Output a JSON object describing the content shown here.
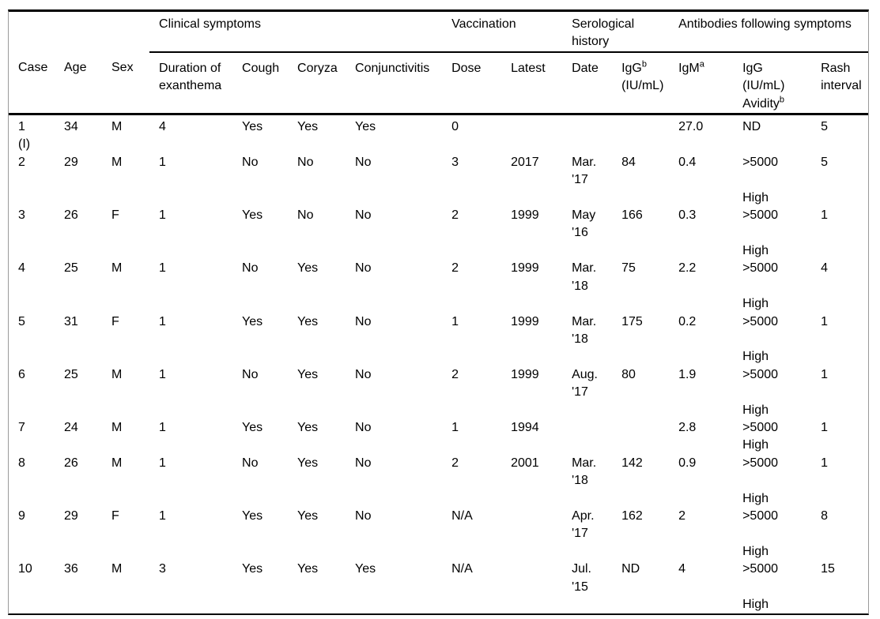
{
  "table": {
    "group_headers": [
      {
        "id": "case-age-sex-spacer",
        "lines": [],
        "colspan": 3,
        "underline": false
      },
      {
        "id": "clinical-symptoms",
        "lines": [
          "Clinical symptoms"
        ],
        "colspan": 4,
        "underline": true
      },
      {
        "id": "vaccination",
        "lines": [
          "Vaccination"
        ],
        "colspan": 2,
        "underline": true
      },
      {
        "id": "serological-history",
        "lines": [
          "Serological",
          "history"
        ],
        "colspan": 2,
        "underline": true
      },
      {
        "id": "antibodies-following-symptoms",
        "lines": [
          "Antibodies following symptoms"
        ],
        "colspan": 3,
        "underline": true
      }
    ],
    "columns": [
      {
        "id": "case",
        "lines": [
          "Case"
        ]
      },
      {
        "id": "age",
        "lines": [
          "Age"
        ]
      },
      {
        "id": "sex",
        "lines": [
          "Sex"
        ]
      },
      {
        "id": "duration-of-exanthema",
        "lines": [
          "Duration of",
          "exanthema"
        ]
      },
      {
        "id": "cough",
        "lines": [
          "Cough"
        ]
      },
      {
        "id": "coryza",
        "lines": [
          "Coryza"
        ]
      },
      {
        "id": "conjunctivitis",
        "lines": [
          "Conjunctivitis"
        ]
      },
      {
        "id": "dose",
        "lines": [
          "Dose"
        ]
      },
      {
        "id": "latest",
        "lines": [
          "Latest"
        ]
      },
      {
        "id": "date",
        "lines": [
          "Date"
        ]
      },
      {
        "id": "igg-serology",
        "lines": [
          {
            "text": "IgG",
            "sup": "b"
          },
          "(IU/mL)"
        ]
      },
      {
        "id": "igm",
        "lines": [
          {
            "text": "IgM",
            "sup": "a"
          }
        ]
      },
      {
        "id": "igg-avidity",
        "lines": [
          "IgG",
          "(IU/mL)",
          {
            "text": "Avidity",
            "sup": "b"
          }
        ]
      },
      {
        "id": "rash-interval",
        "lines": [
          "Rash",
          "interval"
        ]
      }
    ],
    "rows": [
      {
        "case": [
          "1",
          "(I)"
        ],
        "age": [
          "34"
        ],
        "sex": [
          "M"
        ],
        "duration-of-exanthema": [
          "4"
        ],
        "cough": [
          "Yes"
        ],
        "coryza": [
          "Yes"
        ],
        "conjunctivitis": [
          "Yes"
        ],
        "dose": [
          "0"
        ],
        "latest": [],
        "date": [],
        "igg-serology": [],
        "igm": [
          "27.0"
        ],
        "igg-avidity": [
          "ND"
        ],
        "rash-interval": [
          "5"
        ]
      },
      {
        "case": [
          "2"
        ],
        "age": [
          "29"
        ],
        "sex": [
          "M"
        ],
        "duration-of-exanthema": [
          "1"
        ],
        "cough": [
          "No"
        ],
        "coryza": [
          "No"
        ],
        "conjunctivitis": [
          "No"
        ],
        "dose": [
          "3"
        ],
        "latest": [
          "2017"
        ],
        "date": [
          "Mar.",
          "'17"
        ],
        "igg-serology": [
          "84"
        ],
        "igm": [
          "0.4"
        ],
        "igg-avidity": [
          ">5000",
          "",
          "High"
        ],
        "rash-interval": [
          "5"
        ]
      },
      {
        "case": [
          "3"
        ],
        "age": [
          "26"
        ],
        "sex": [
          "F"
        ],
        "duration-of-exanthema": [
          "1"
        ],
        "cough": [
          "Yes"
        ],
        "coryza": [
          "No"
        ],
        "conjunctivitis": [
          "No"
        ],
        "dose": [
          "2"
        ],
        "latest": [
          "1999"
        ],
        "date": [
          "May",
          "'16"
        ],
        "igg-serology": [
          "166"
        ],
        "igm": [
          "0.3"
        ],
        "igg-avidity": [
          ">5000",
          "",
          "High"
        ],
        "rash-interval": [
          "1"
        ]
      },
      {
        "case": [
          "4"
        ],
        "age": [
          "25"
        ],
        "sex": [
          "M"
        ],
        "duration-of-exanthema": [
          "1"
        ],
        "cough": [
          "No"
        ],
        "coryza": [
          "Yes"
        ],
        "conjunctivitis": [
          "No"
        ],
        "dose": [
          "2"
        ],
        "latest": [
          "1999"
        ],
        "date": [
          "Mar.",
          "'18"
        ],
        "igg-serology": [
          "75"
        ],
        "igm": [
          "2.2"
        ],
        "igg-avidity": [
          ">5000",
          "",
          "High"
        ],
        "rash-interval": [
          "4"
        ]
      },
      {
        "case": [
          "5"
        ],
        "age": [
          "31"
        ],
        "sex": [
          "F"
        ],
        "duration-of-exanthema": [
          "1"
        ],
        "cough": [
          "Yes"
        ],
        "coryza": [
          "Yes"
        ],
        "conjunctivitis": [
          "No"
        ],
        "dose": [
          "1"
        ],
        "latest": [
          "1999"
        ],
        "date": [
          "Mar.",
          "'18"
        ],
        "igg-serology": [
          "175"
        ],
        "igm": [
          "0.2"
        ],
        "igg-avidity": [
          ">5000",
          "",
          "High"
        ],
        "rash-interval": [
          "1"
        ]
      },
      {
        "case": [
          "6"
        ],
        "age": [
          "25"
        ],
        "sex": [
          "M"
        ],
        "duration-of-exanthema": [
          "1"
        ],
        "cough": [
          "No"
        ],
        "coryza": [
          "Yes"
        ],
        "conjunctivitis": [
          "No"
        ],
        "dose": [
          "2"
        ],
        "latest": [
          "1999"
        ],
        "date": [
          "Aug.",
          "'17"
        ],
        "igg-serology": [
          "80"
        ],
        "igm": [
          "1.9"
        ],
        "igg-avidity": [
          ">5000",
          "",
          "High"
        ],
        "rash-interval": [
          "1"
        ]
      },
      {
        "case": [
          "7"
        ],
        "age": [
          "24"
        ],
        "sex": [
          "M"
        ],
        "duration-of-exanthema": [
          "1"
        ],
        "cough": [
          "Yes"
        ],
        "coryza": [
          "Yes"
        ],
        "conjunctivitis": [
          "No"
        ],
        "dose": [
          "1"
        ],
        "latest": [
          "1994"
        ],
        "date": [],
        "igg-serology": [],
        "igm": [
          "2.8"
        ],
        "igg-avidity": [
          ">5000",
          "High"
        ],
        "rash-interval": [
          "1"
        ]
      },
      {
        "case": [
          "8"
        ],
        "age": [
          "26"
        ],
        "sex": [
          "M"
        ],
        "duration-of-exanthema": [
          "1"
        ],
        "cough": [
          "No"
        ],
        "coryza": [
          "Yes"
        ],
        "conjunctivitis": [
          "No"
        ],
        "dose": [
          "2"
        ],
        "latest": [
          "2001"
        ],
        "date": [
          "Mar.",
          "'18"
        ],
        "igg-serology": [
          "142"
        ],
        "igm": [
          "0.9"
        ],
        "igg-avidity": [
          ">5000",
          "",
          "High"
        ],
        "rash-interval": [
          "1"
        ]
      },
      {
        "case": [
          "9"
        ],
        "age": [
          "29"
        ],
        "sex": [
          "F"
        ],
        "duration-of-exanthema": [
          "1"
        ],
        "cough": [
          "Yes"
        ],
        "coryza": [
          "Yes"
        ],
        "conjunctivitis": [
          "No"
        ],
        "dose": [
          "N/A"
        ],
        "latest": [],
        "date": [
          "Apr.",
          "'17"
        ],
        "igg-serology": [
          "162"
        ],
        "igm": [
          "2"
        ],
        "igg-avidity": [
          ">5000",
          "",
          "High"
        ],
        "rash-interval": [
          "8"
        ]
      },
      {
        "case": [
          "10"
        ],
        "age": [
          "36"
        ],
        "sex": [
          "M"
        ],
        "duration-of-exanthema": [
          "3"
        ],
        "cough": [
          "Yes"
        ],
        "coryza": [
          "Yes"
        ],
        "conjunctivitis": [
          "Yes"
        ],
        "dose": [
          "N/A"
        ],
        "latest": [],
        "date": [
          "Jul.",
          "'15"
        ],
        "igg-serology": [
          "ND"
        ],
        "igm": [
          "4"
        ],
        "igg-avidity": [
          ">5000",
          "",
          "High"
        ],
        "rash-interval": [
          "15"
        ]
      }
    ]
  },
  "colors": {
    "text": "#000000",
    "rule_heavy": "#000000",
    "frame_side": "#9a9a9a",
    "background": "#ffffff"
  }
}
